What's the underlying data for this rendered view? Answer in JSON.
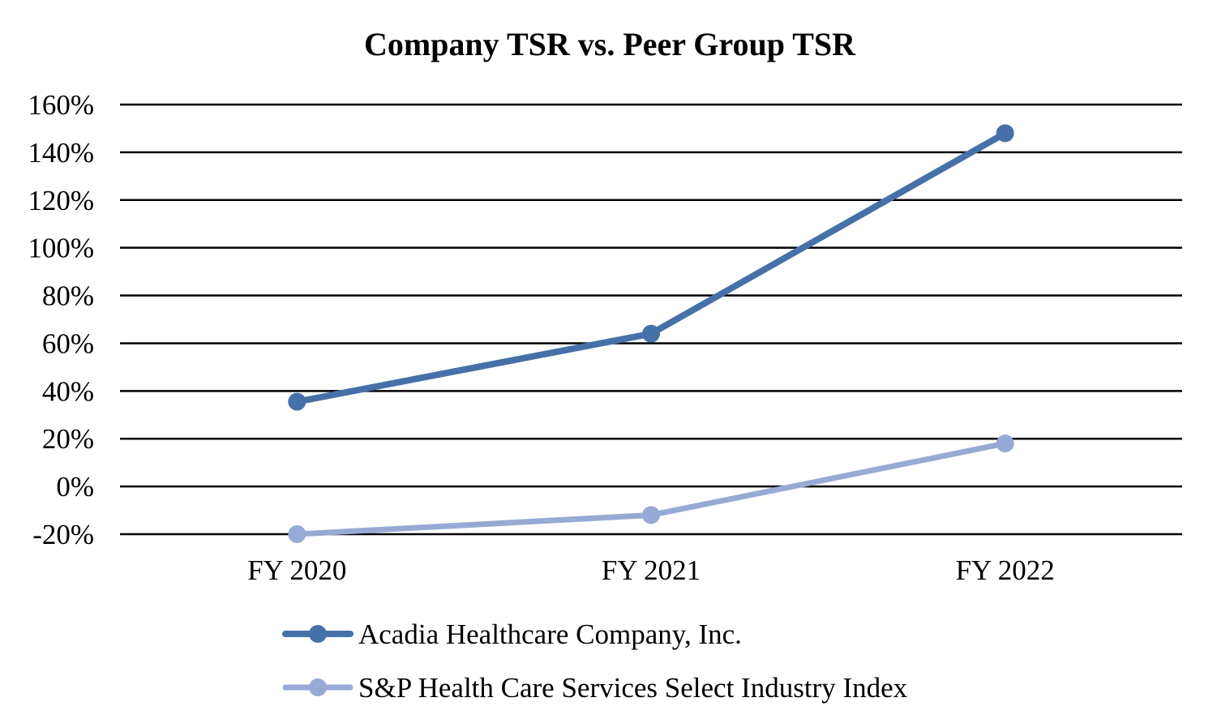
{
  "chart_data": {
    "type": "line",
    "title": "Company TSR vs. Peer Group TSR",
    "categories": [
      "FY 2020",
      "FY 2021",
      "FY 2022"
    ],
    "ylim": [
      -20,
      160
    ],
    "yticks": [
      160,
      140,
      120,
      100,
      80,
      60,
      40,
      20,
      0,
      -20
    ],
    "ytick_labels": [
      "160%",
      "140%",
      "120%",
      "100%",
      "80%",
      "60%",
      "40%",
      "20%",
      "0%",
      "-20%"
    ],
    "xlabel": "",
    "ylabel": "",
    "grid": true,
    "legend_position": "bottom",
    "series": [
      {
        "name": "Acadia Healthcare Company, Inc.",
        "values": [
          35.5,
          64,
          148
        ],
        "color": "#4571a8"
      },
      {
        "name": "S&P Health Care Services Select Industry Index",
        "values": [
          -20,
          -12,
          18
        ],
        "color": "#96aad5"
      }
    ]
  }
}
